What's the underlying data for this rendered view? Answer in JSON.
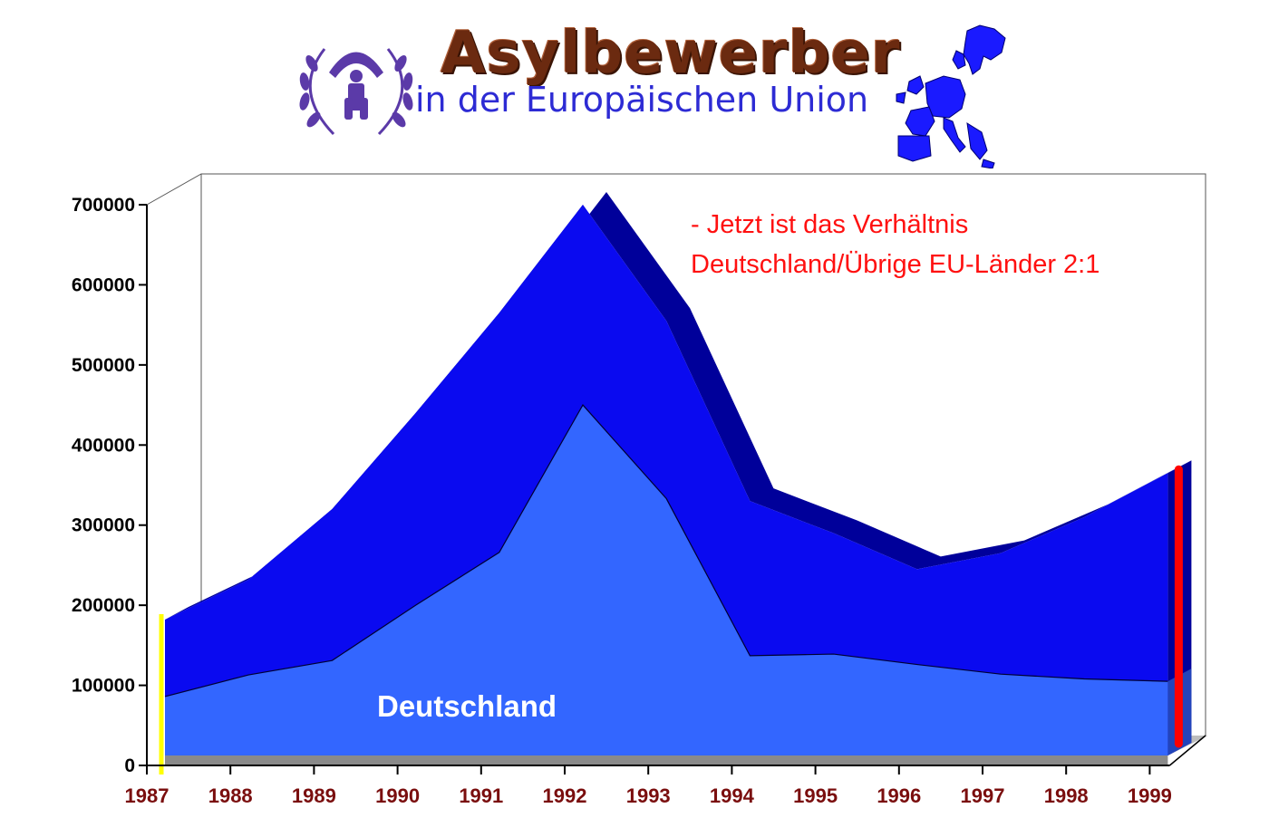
{
  "header": {
    "title": "Asylbewerber",
    "subtitle": "in der Europäischen Union",
    "logo_icon": "unhcr-logo-icon",
    "map_icon": "eu-map-icon"
  },
  "colors": {
    "total_front": "#0a0af0",
    "total_side": "#00009a",
    "deutschland": "#3366ff",
    "floor": "#8a8a8a",
    "marker_1987": "#ffff00",
    "marker_1999": "#ff0000",
    "annotation": "#ff1010",
    "year_label": "#7a0e0e"
  },
  "annotation": {
    "line1": "- Jetzt ist das Verhältnis",
    "line2": "Deutschland/Übrige EU-Länder 2:1"
  },
  "chart_data": {
    "type": "area",
    "x": [
      "1987",
      "1988",
      "1989",
      "1990",
      "1991",
      "1992",
      "1993",
      "1994",
      "1995",
      "1996",
      "1997",
      "1998",
      "1999"
    ],
    "series": [
      {
        "name": "EU",
        "values": [
          182000,
          232000,
          320000,
          440000,
          565000,
          700000,
          555000,
          330000,
          290000,
          245000,
          265000,
          310000,
          365000
        ]
      },
      {
        "name": "Deutschland",
        "values": [
          86000,
          113000,
          131000,
          200000,
          266000,
          450000,
          333000,
          137000,
          139000,
          126000,
          114000,
          108000,
          105000
        ]
      }
    ],
    "series_label": "Deutschland",
    "y_ticks": [
      0,
      100000,
      200000,
      300000,
      400000,
      500000,
      600000,
      700000
    ],
    "y_tick_labels": [
      "0",
      "100000",
      "200000",
      "300000",
      "400000",
      "500000",
      "600000",
      "700000"
    ],
    "ylim": [
      0,
      700000
    ],
    "grid": false
  }
}
